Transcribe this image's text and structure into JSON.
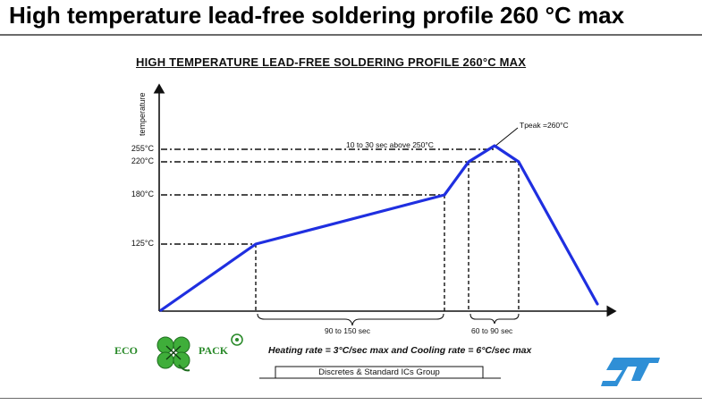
{
  "slide": {
    "title": "High temperature lead-free soldering profile 260 °C max"
  },
  "diagram": {
    "title": "HIGH TEMPERATURE LEAD-FREE SOLDERING PROFILE 260°C MAX",
    "ylabel": "temperature",
    "ticks": [
      "255°C",
      "220°C",
      "180°C",
      "125°C"
    ],
    "annotations": {
      "peak": "Tpeak =260°C",
      "above": "10 to 30 sec above 250°C",
      "preheat": "90 to 150 sec",
      "reflow": "60 to 90 sec"
    },
    "rate_note": "Heating rate = 3°C/sec max and Cooling rate = 6°C/sec max",
    "curve_color": "#1f2fe0"
  },
  "branding": {
    "eco": "ECO",
    "pack": "PACK",
    "footer": "Discretes & Standard ICs Group",
    "logo_color": "#2f8fd6",
    "eco_color": "#2a8a2a",
    "icons": [
      "clover-icon",
      "recycle-icon",
      "st-logo-icon"
    ]
  }
}
